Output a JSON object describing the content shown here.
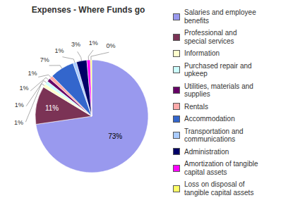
{
  "chart_data": {
    "type": "pie",
    "title": "Expenses - Where Funds go",
    "categories": [
      "Salaries and employee\nbenefits",
      "Professional and\nspecial services",
      "Information",
      "Purchased repair and\nupkeep",
      "Utilities, materials and\nsupplies",
      "Rentals",
      "Accommodation",
      "Transportation and\ncommunications",
      "Administration",
      "Amortization of tangible\ncapital assets",
      "Loss on disposal of\ntangible capital assets"
    ],
    "values": [
      73,
      11,
      1,
      1,
      1,
      1,
      7,
      1,
      3,
      1,
      0.4
    ],
    "value_labels": [
      "73%",
      "11%",
      "1%",
      "1%",
      "1%",
      "1%",
      "7%",
      "1%",
      "3%",
      "1%",
      "0%"
    ],
    "colors": [
      "#9999EE",
      "#7B3355",
      "#FFFFCC",
      "#CCFFFF",
      "#660066",
      "#FFAAAA",
      "#3366CC",
      "#AACCFF",
      "#000066",
      "#FF00FF",
      "#FFFF66"
    ],
    "data_labels": true,
    "legend": "right"
  }
}
